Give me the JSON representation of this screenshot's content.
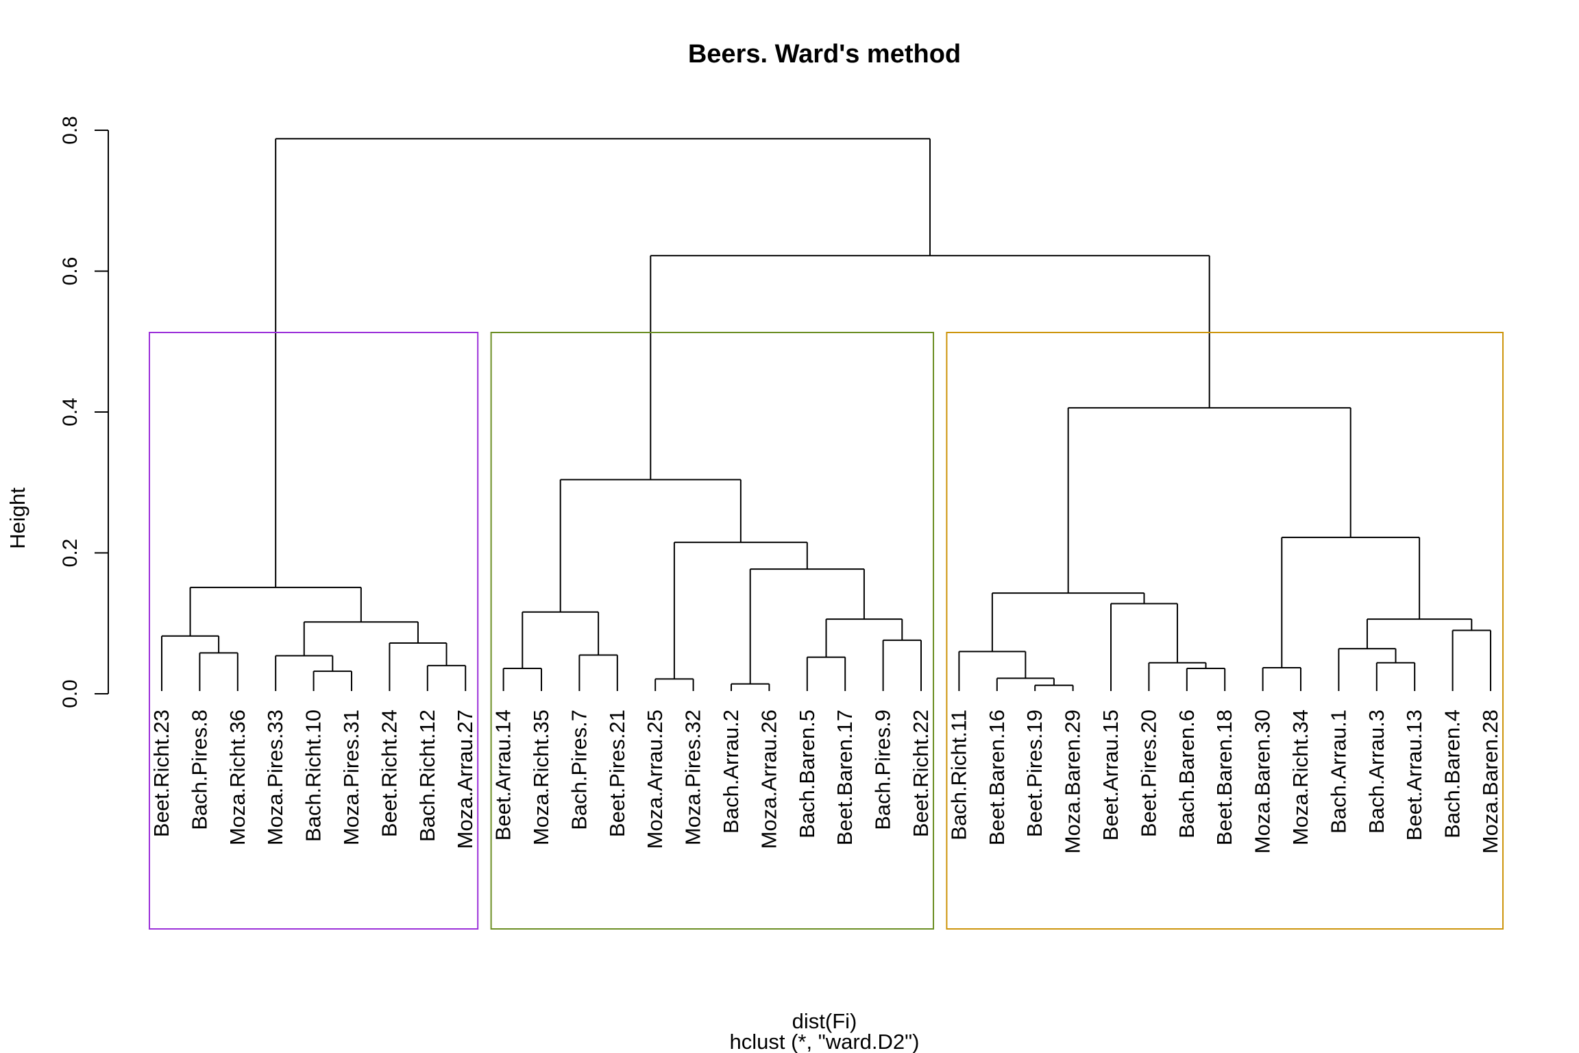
{
  "chart_data": {
    "type": "dendrogram",
    "title": "Beers. Ward's method",
    "ylabel": "Height",
    "xlabel": "dist(Fi)",
    "sublabel": "hclust (*, \"ward.D2\")",
    "ylim": [
      0,
      0.8
    ],
    "yticks": [
      0.0,
      0.2,
      0.4,
      0.6,
      0.8
    ],
    "ytick_labels": [
      "0.0",
      "0.2",
      "0.4",
      "0.6",
      "0.8"
    ],
    "leaves": [
      "Beet.Richt.23",
      "Bach.Pires.8",
      "Moza.Richt.36",
      "Moza.Pires.33",
      "Bach.Richt.10",
      "Moza.Pires.31",
      "Beet.Richt.24",
      "Bach.Richt.12",
      "Moza.Arrau.27",
      "Beet.Arrau.14",
      "Moza.Richt.35",
      "Bach.Pires.7",
      "Beet.Pires.21",
      "Moza.Arrau.25",
      "Moza.Pires.32",
      "Bach.Arrau.2",
      "Moza.Arrau.26",
      "Bach.Baren.5",
      "Beet.Baren.17",
      "Bach.Pires.9",
      "Beet.Richt.22",
      "Bach.Richt.11",
      "Beet.Baren.16",
      "Beet.Pires.19",
      "Moza.Baren.29",
      "Beet.Arrau.15",
      "Beet.Pires.20",
      "Bach.Baren.6",
      "Beet.Baren.18",
      "Moza.Baren.30",
      "Moza.Richt.34",
      "Bach.Arrau.1",
      "Bach.Arrau.3",
      "Beet.Arrau.13",
      "Bach.Baren.4",
      "Moza.Baren.28"
    ],
    "merges": [
      {
        "id": "A1",
        "children": [
          "Bach.Pires.8",
          "Moza.Richt.36"
        ],
        "height": 0.058
      },
      {
        "id": "A2",
        "children": [
          "Beet.Richt.23",
          "A1"
        ],
        "height": 0.082
      },
      {
        "id": "A3",
        "children": [
          "Bach.Richt.10",
          "Moza.Pires.31"
        ],
        "height": 0.032
      },
      {
        "id": "A4",
        "children": [
          "Moza.Pires.33",
          "A3"
        ],
        "height": 0.054
      },
      {
        "id": "A5",
        "children": [
          "Bach.Richt.12",
          "Moza.Arrau.27"
        ],
        "height": 0.04
      },
      {
        "id": "A6",
        "children": [
          "Beet.Richt.24",
          "A5"
        ],
        "height": 0.072
      },
      {
        "id": "A7",
        "children": [
          "A4",
          "A6"
        ],
        "height": 0.102
      },
      {
        "id": "A8",
        "children": [
          "A2",
          "A7"
        ],
        "height": 0.151
      },
      {
        "id": "B1",
        "children": [
          "Beet.Arrau.14",
          "Moza.Richt.35"
        ],
        "height": 0.036
      },
      {
        "id": "B2",
        "children": [
          "Bach.Pires.7",
          "Beet.Pires.21"
        ],
        "height": 0.055
      },
      {
        "id": "B3",
        "children": [
          "B1",
          "B2"
        ],
        "height": 0.116
      },
      {
        "id": "B4",
        "children": [
          "Moza.Arrau.25",
          "Moza.Pires.32"
        ],
        "height": 0.021
      },
      {
        "id": "B5",
        "children": [
          "Bach.Arrau.2",
          "Moza.Arrau.26"
        ],
        "height": 0.014
      },
      {
        "id": "B6",
        "children": [
          "Bach.Baren.5",
          "Beet.Baren.17"
        ],
        "height": 0.052
      },
      {
        "id": "B7",
        "children": [
          "Bach.Pires.9",
          "Beet.Richt.22"
        ],
        "height": 0.076
      },
      {
        "id": "B8",
        "children": [
          "B6",
          "B7"
        ],
        "height": 0.106
      },
      {
        "id": "B9",
        "children": [
          "B5",
          "B8"
        ],
        "height": 0.177
      },
      {
        "id": "B10",
        "children": [
          "B4",
          "B9"
        ],
        "height": 0.215
      },
      {
        "id": "B11",
        "children": [
          "B3",
          "B10"
        ],
        "height": 0.304
      },
      {
        "id": "C1",
        "children": [
          "Beet.Pires.19",
          "Moza.Baren.29"
        ],
        "height": 0.012
      },
      {
        "id": "C2",
        "children": [
          "Beet.Baren.16",
          "C1"
        ],
        "height": 0.022
      },
      {
        "id": "C3",
        "children": [
          "Bach.Richt.11",
          "C2"
        ],
        "height": 0.06
      },
      {
        "id": "C4",
        "children": [
          "Bach.Baren.6",
          "Beet.Baren.18"
        ],
        "height": 0.036
      },
      {
        "id": "C5",
        "children": [
          "Beet.Pires.20",
          "C4"
        ],
        "height": 0.044
      },
      {
        "id": "C6",
        "children": [
          "Beet.Arrau.15",
          "C5"
        ],
        "height": 0.128
      },
      {
        "id": "C7",
        "children": [
          "C3",
          "C6"
        ],
        "height": 0.143
      },
      {
        "id": "C8",
        "children": [
          "Moza.Baren.30",
          "Moza.Richt.34"
        ],
        "height": 0.037
      },
      {
        "id": "C9",
        "children": [
          "Bach.Arrau.3",
          "Beet.Arrau.13"
        ],
        "height": 0.044
      },
      {
        "id": "C10",
        "children": [
          "Bach.Arrau.1",
          "C9"
        ],
        "height": 0.064
      },
      {
        "id": "C11",
        "children": [
          "Bach.Baren.4",
          "Moza.Baren.28"
        ],
        "height": 0.09
      },
      {
        "id": "C12",
        "children": [
          "C10",
          "C11"
        ],
        "height": 0.106
      },
      {
        "id": "C13",
        "children": [
          "C8",
          "C12"
        ],
        "height": 0.222
      },
      {
        "id": "C14",
        "children": [
          "C7",
          "C13"
        ],
        "height": 0.406
      },
      {
        "id": "R1",
        "children": [
          "B11",
          "C14"
        ],
        "height": 0.622
      },
      {
        "id": "R0",
        "children": [
          "A8",
          "R1"
        ],
        "height": 0.788
      }
    ],
    "cluster_boxes": [
      {
        "first_leaf": 1,
        "last_leaf": 9,
        "color": "#9b30d9"
      },
      {
        "first_leaf": 10,
        "last_leaf": 21,
        "color": "#6b8e23"
      },
      {
        "first_leaf": 22,
        "last_leaf": 36,
        "color": "#cd950c"
      }
    ]
  }
}
